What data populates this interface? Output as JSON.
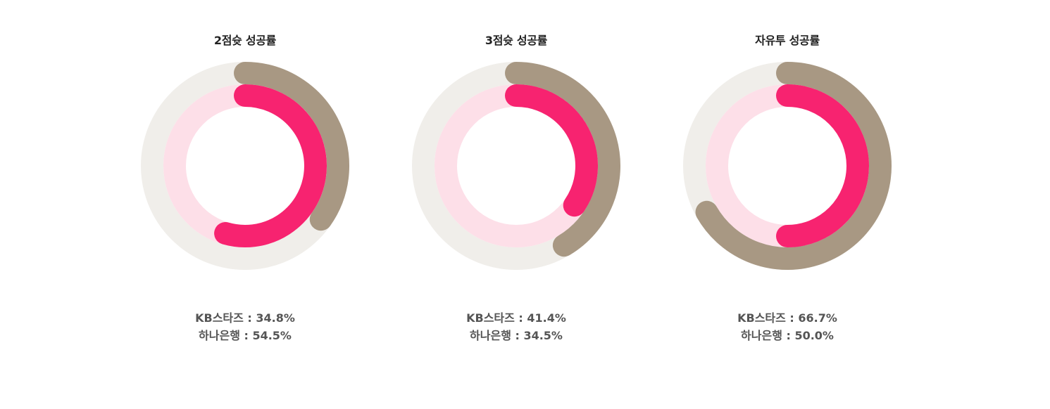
{
  "chart_data": [
    {
      "type": "donut",
      "title": "2점슛 성공률",
      "series": [
        {
          "name": "KB스타즈",
          "value": 34.8,
          "label": "KB스타즈 : 34.8%"
        },
        {
          "name": "하나은행",
          "value": 54.5,
          "label": "하나은행 : 54.5%"
        }
      ]
    },
    {
      "type": "donut",
      "title": "3점슛 성공률",
      "series": [
        {
          "name": "KB스타즈",
          "value": 41.4,
          "label": "KB스타즈 : 41.4%"
        },
        {
          "name": "하나은행",
          "value": 34.5,
          "label": "하나은행 : 34.5%"
        }
      ]
    },
    {
      "type": "donut",
      "title": "자유투 성공률",
      "series": [
        {
          "name": "KB스타즈",
          "value": 66.7,
          "label": "KB스타즈 : 66.7%"
        },
        {
          "name": "하나은행",
          "value": 50.0,
          "label": "하나은행 : 50.0%"
        }
      ]
    }
  ],
  "colors": {
    "kb_arc": "#a89883",
    "kb_track": "#f0eeea",
    "hana_arc": "#f72370",
    "hana_track": "#fddfe8"
  }
}
